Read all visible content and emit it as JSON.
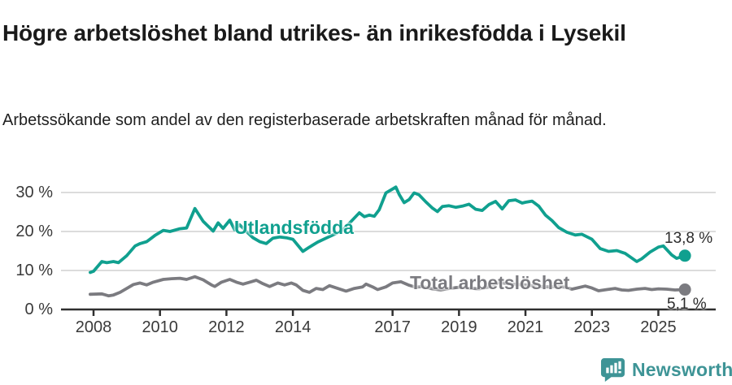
{
  "header": {
    "title": "Högre arbetslöshet bland utrikes- än inrikesfödda i Lysekil",
    "subtitle": "Arbetssökande som andel av den registerbaserade arbetskraften månad för månad."
  },
  "chart_data": {
    "type": "line",
    "title": "Högre arbetslöshet bland utrikes- än inrikesfödda i Lysekil",
    "subtitle": "Arbetssökande som andel av den registerbaserade arbetskraften månad för månad.",
    "unit": "%",
    "grid": "horizontal",
    "legend_position": "inline-labels",
    "xlim": [
      2007.0,
      2026.75
    ],
    "ylim": [
      0,
      33
    ],
    "y_ticks": [
      0,
      10,
      20,
      30
    ],
    "y_tick_suffix": " %",
    "x_tick_years": [
      2008,
      2010,
      2012,
      2014,
      2017,
      2019,
      2021,
      2023,
      2025
    ],
    "series": [
      {
        "name": "Utlandsfödda",
        "color": "#10a08f",
        "end_label": "13,8 %",
        "end_value": 13.8,
        "points": [
          [
            2007.9,
            9.5
          ],
          [
            2008.0,
            9.8
          ],
          [
            2008.25,
            12.3
          ],
          [
            2008.4,
            12.0
          ],
          [
            2008.6,
            12.3
          ],
          [
            2008.75,
            12.0
          ],
          [
            2009.0,
            13.8
          ],
          [
            2009.25,
            16.3
          ],
          [
            2009.4,
            16.9
          ],
          [
            2009.6,
            17.4
          ],
          [
            2009.85,
            19.0
          ],
          [
            2010.1,
            20.3
          ],
          [
            2010.3,
            20.0
          ],
          [
            2010.6,
            20.7
          ],
          [
            2010.8,
            20.9
          ],
          [
            2011.05,
            25.9
          ],
          [
            2011.3,
            22.6
          ],
          [
            2011.6,
            20.1
          ],
          [
            2011.75,
            22.2
          ],
          [
            2011.9,
            20.8
          ],
          [
            2012.1,
            22.9
          ],
          [
            2012.25,
            20.4
          ],
          [
            2012.4,
            21.7
          ],
          [
            2012.6,
            20.0
          ],
          [
            2012.8,
            18.4
          ],
          [
            2013.0,
            17.4
          ],
          [
            2013.2,
            16.9
          ],
          [
            2013.4,
            18.3
          ],
          [
            2013.6,
            18.6
          ],
          [
            2013.8,
            18.4
          ],
          [
            2014.0,
            18.0
          ],
          [
            2014.3,
            14.9
          ],
          [
            2014.5,
            16.0
          ],
          [
            2014.75,
            17.3
          ],
          [
            2015.0,
            18.3
          ],
          [
            2015.25,
            19.3
          ],
          [
            2015.5,
            20.4
          ],
          [
            2015.7,
            22.1
          ],
          [
            2016.0,
            24.8
          ],
          [
            2016.15,
            23.8
          ],
          [
            2016.3,
            24.2
          ],
          [
            2016.45,
            23.9
          ],
          [
            2016.6,
            25.6
          ],
          [
            2016.8,
            29.9
          ],
          [
            2017.0,
            30.9
          ],
          [
            2017.1,
            31.4
          ],
          [
            2017.2,
            29.5
          ],
          [
            2017.35,
            27.4
          ],
          [
            2017.5,
            28.2
          ],
          [
            2017.65,
            29.9
          ],
          [
            2017.8,
            29.4
          ],
          [
            2018.0,
            27.6
          ],
          [
            2018.2,
            26.0
          ],
          [
            2018.35,
            25.1
          ],
          [
            2018.5,
            26.4
          ],
          [
            2018.7,
            26.6
          ],
          [
            2018.9,
            26.2
          ],
          [
            2019.1,
            26.5
          ],
          [
            2019.3,
            27.0
          ],
          [
            2019.5,
            25.7
          ],
          [
            2019.7,
            25.4
          ],
          [
            2019.9,
            26.9
          ],
          [
            2020.1,
            27.7
          ],
          [
            2020.3,
            25.8
          ],
          [
            2020.5,
            27.9
          ],
          [
            2020.7,
            28.1
          ],
          [
            2020.9,
            27.3
          ],
          [
            2021.0,
            27.5
          ],
          [
            2021.2,
            27.8
          ],
          [
            2021.4,
            26.5
          ],
          [
            2021.6,
            24.2
          ],
          [
            2021.8,
            22.8
          ],
          [
            2022.0,
            21.0
          ],
          [
            2022.25,
            19.8
          ],
          [
            2022.5,
            19.1
          ],
          [
            2022.7,
            19.3
          ],
          [
            2023.0,
            18.0
          ],
          [
            2023.25,
            15.6
          ],
          [
            2023.5,
            14.9
          ],
          [
            2023.75,
            15.1
          ],
          [
            2024.0,
            14.4
          ],
          [
            2024.35,
            12.3
          ],
          [
            2024.5,
            13.0
          ],
          [
            2024.75,
            14.7
          ],
          [
            2025.0,
            16.0
          ],
          [
            2025.15,
            16.3
          ],
          [
            2025.4,
            14.0
          ],
          [
            2025.55,
            13.1
          ],
          [
            2025.8,
            13.8
          ]
        ]
      },
      {
        "name": "Total arbetslöshet",
        "color": "#7b7b80",
        "end_label": "5,1 %",
        "end_value": 5.1,
        "points": [
          [
            2007.9,
            3.9
          ],
          [
            2008.25,
            4.0
          ],
          [
            2008.45,
            3.5
          ],
          [
            2008.6,
            3.7
          ],
          [
            2008.8,
            4.4
          ],
          [
            2009.0,
            5.4
          ],
          [
            2009.2,
            6.4
          ],
          [
            2009.4,
            6.8
          ],
          [
            2009.6,
            6.3
          ],
          [
            2009.8,
            7.0
          ],
          [
            2010.1,
            7.7
          ],
          [
            2010.35,
            7.9
          ],
          [
            2010.6,
            8.0
          ],
          [
            2010.8,
            7.7
          ],
          [
            2011.05,
            8.4
          ],
          [
            2011.3,
            7.6
          ],
          [
            2011.55,
            6.3
          ],
          [
            2011.65,
            5.9
          ],
          [
            2011.85,
            7.0
          ],
          [
            2012.1,
            7.7
          ],
          [
            2012.3,
            7.0
          ],
          [
            2012.5,
            6.5
          ],
          [
            2012.7,
            7.0
          ],
          [
            2012.9,
            7.5
          ],
          [
            2013.1,
            6.6
          ],
          [
            2013.3,
            5.9
          ],
          [
            2013.55,
            6.8
          ],
          [
            2013.75,
            6.3
          ],
          [
            2013.95,
            6.8
          ],
          [
            2014.1,
            6.3
          ],
          [
            2014.3,
            4.9
          ],
          [
            2014.5,
            4.4
          ],
          [
            2014.7,
            5.4
          ],
          [
            2014.9,
            5.1
          ],
          [
            2015.1,
            6.1
          ],
          [
            2015.35,
            5.4
          ],
          [
            2015.6,
            4.7
          ],
          [
            2015.85,
            5.4
          ],
          [
            2016.1,
            5.8
          ],
          [
            2016.2,
            6.5
          ],
          [
            2016.4,
            5.8
          ],
          [
            2016.55,
            5.1
          ],
          [
            2016.8,
            5.8
          ],
          [
            2017.0,
            6.8
          ],
          [
            2017.25,
            7.1
          ],
          [
            2017.5,
            6.2
          ],
          [
            2017.7,
            5.7
          ],
          [
            2017.9,
            5.9
          ],
          [
            2018.2,
            5.3
          ],
          [
            2018.45,
            5.0
          ],
          [
            2018.7,
            5.4
          ],
          [
            2019.0,
            5.7
          ],
          [
            2019.3,
            5.5
          ],
          [
            2019.6,
            5.3
          ],
          [
            2019.9,
            5.8
          ],
          [
            2020.2,
            6.9
          ],
          [
            2020.5,
            6.6
          ],
          [
            2020.8,
            6.4
          ],
          [
            2021.1,
            6.2
          ],
          [
            2021.4,
            5.9
          ],
          [
            2021.7,
            5.8
          ],
          [
            2022.0,
            5.9
          ],
          [
            2022.2,
            5.7
          ],
          [
            2022.4,
            5.2
          ],
          [
            2022.6,
            5.6
          ],
          [
            2022.8,
            6.0
          ],
          [
            2023.0,
            5.5
          ],
          [
            2023.2,
            4.8
          ],
          [
            2023.45,
            5.1
          ],
          [
            2023.7,
            5.4
          ],
          [
            2023.9,
            5.0
          ],
          [
            2024.1,
            4.9
          ],
          [
            2024.35,
            5.2
          ],
          [
            2024.6,
            5.4
          ],
          [
            2024.8,
            5.1
          ],
          [
            2025.0,
            5.3
          ],
          [
            2025.25,
            5.2
          ],
          [
            2025.5,
            5.0
          ],
          [
            2025.8,
            5.1
          ]
        ]
      }
    ]
  },
  "footer": {
    "brand": "Newsworthy",
    "logo_icon": "speech-bubble-bar-chart"
  },
  "colors": {
    "accent_teal": "#10a08f",
    "series_gray": "#7b7b80",
    "brand_teal": "#3e9496",
    "gridline": "#dcdcdc",
    "axis": "#2f2f2f",
    "text_dark": "#1a1a1a"
  }
}
